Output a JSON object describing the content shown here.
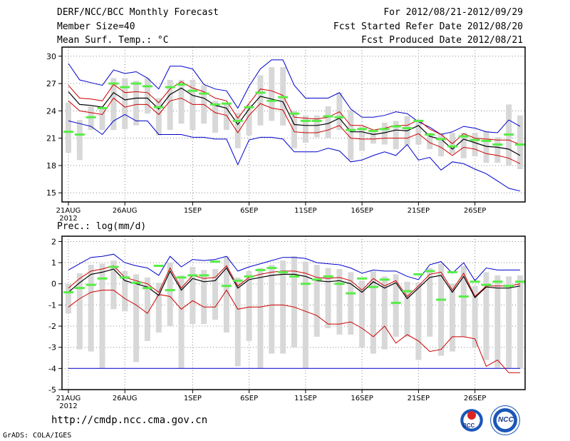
{
  "header": {
    "title": "DERF/NCC/BCC Monthly Forecast",
    "member_size": "Member Size=40",
    "variable": "Mean Surf. Temp.: °C",
    "period": "For 2012/08/21-2012/09/29",
    "start_date": "Fcst Started Refer Date 2012/08/20",
    "produced": "Fcst Produced Date 2012/08/21"
  },
  "prec_label": "Prec.: log(mm/d)",
  "footer": {
    "url": "http://cmdp.ncc.cma.gov.cn",
    "grads": "GrADS: COLA/IGES",
    "logo_bcc": "BCC",
    "logo_ncc": "NCC"
  },
  "colors": {
    "envelope": "#0000cc",
    "spread": "#cc0000",
    "mean": "#000000",
    "obs": "#55ee44",
    "box": "#d8d8d8"
  },
  "chart_data": [
    {
      "type": "box",
      "title": "Mean Surf. Temp.: °C",
      "ylim": [
        14,
        31
      ],
      "yticks": [
        15,
        18,
        21,
        24,
        27,
        30
      ],
      "year_label": "2012",
      "xticks": [
        {
          "day": 1,
          "label": "21AUG"
        },
        {
          "day": 6,
          "label": "26AUG"
        },
        {
          "day": 12,
          "label": "1SEP"
        },
        {
          "day": 17,
          "label": "6SEP"
        },
        {
          "day": 22,
          "label": "11SEP"
        },
        {
          "day": 27,
          "label": "16SEP"
        },
        {
          "day": 32,
          "label": "21SEP"
        },
        {
          "day": 37,
          "label": "26SEP"
        }
      ],
      "series": [
        {
          "name": "ensemble max",
          "values": [
            29.2,
            27.4,
            27.1,
            26.8,
            28.5,
            28.1,
            28.3,
            27.6,
            26.4,
            28.9,
            28.9,
            28.6,
            26.9,
            26.4,
            26.2,
            24.3,
            26.7,
            28.6,
            29.6,
            29.6,
            26.8,
            25.4,
            25.4,
            25.4,
            26.0,
            24.2,
            23.3,
            23.3,
            23.5,
            23.9,
            23.7,
            22.8,
            22.2,
            21.4,
            21.7,
            22.3,
            22.1,
            21.7,
            21.6,
            23.0,
            22.3
          ]
        },
        {
          "name": "mean + 1 sd",
          "values": [
            26.8,
            25.4,
            25.3,
            25.1,
            26.9,
            26.0,
            26.1,
            26.0,
            24.9,
            26.4,
            27.2,
            26.5,
            26.1,
            25.4,
            25.1,
            23.2,
            24.8,
            26.4,
            26.2,
            25.7,
            23.3,
            23.2,
            23.1,
            23.3,
            23.9,
            22.4,
            22.4,
            21.9,
            22.1,
            22.4,
            22.4,
            23.0,
            22.0,
            21.4,
            20.4,
            21.5,
            21.0,
            20.9,
            20.8,
            20.8,
            20.3
          ]
        },
        {
          "name": "ensemble mean",
          "values": [
            26.1,
            24.7,
            24.6,
            24.4,
            26.0,
            25.2,
            25.4,
            25.4,
            24.2,
            25.8,
            26.5,
            25.7,
            25.4,
            24.6,
            24.3,
            22.5,
            24.2,
            25.6,
            25.3,
            25.0,
            22.5,
            22.4,
            22.4,
            22.6,
            23.2,
            21.7,
            21.7,
            21.4,
            21.6,
            21.9,
            21.8,
            22.4,
            21.2,
            20.9,
            19.8,
            20.9,
            20.5,
            20.1,
            20.0,
            19.8,
            19.1
          ]
        },
        {
          "name": "mean - 1 sd",
          "values": [
            25.1,
            24.0,
            23.8,
            23.6,
            25.4,
            24.4,
            24.7,
            24.7,
            23.6,
            25.1,
            25.4,
            24.7,
            24.7,
            23.8,
            23.5,
            21.6,
            23.5,
            24.8,
            24.3,
            24.1,
            21.7,
            21.6,
            21.6,
            21.9,
            22.4,
            21.0,
            20.9,
            20.9,
            21.0,
            21.0,
            21.0,
            21.5,
            20.5,
            20.0,
            19.1,
            20.0,
            19.8,
            19.3,
            19.1,
            18.8,
            18.2
          ]
        },
        {
          "name": "ensemble min",
          "values": [
            22.9,
            22.6,
            22.3,
            21.4,
            22.9,
            23.6,
            22.9,
            22.9,
            21.4,
            21.4,
            21.4,
            21.1,
            21.1,
            20.9,
            20.9,
            18.1,
            20.8,
            21.1,
            21.1,
            20.9,
            19.5,
            19.5,
            19.5,
            19.9,
            19.6,
            18.4,
            18.6,
            19.1,
            19.5,
            19.1,
            20.3,
            18.6,
            18.9,
            17.5,
            18.4,
            18.2,
            17.6,
            17.1,
            16.3,
            15.5,
            15.2
          ]
        },
        {
          "name": "box top",
          "values": [
            24.9,
            23.0,
            24.5,
            24.4,
            27.6,
            27.6,
            27.3,
            27.6,
            25.4,
            27.4,
            27.4,
            27.4,
            26.8,
            25.1,
            24.8,
            23.8,
            24.7,
            27.9,
            28.8,
            28.8,
            24.0,
            23.5,
            23.5,
            24.5,
            26.0,
            24.1,
            22.3,
            21.9,
            22.7,
            22.9,
            23.4,
            23.0,
            21.6,
            21.6,
            21.6,
            21.6,
            21.6,
            21.8,
            21.1,
            24.7,
            23.5
          ]
        },
        {
          "name": "box bottom",
          "values": [
            19.4,
            18.6,
            21.9,
            21.9,
            21.9,
            22.0,
            22.4,
            23.7,
            21.3,
            21.9,
            22.6,
            21.9,
            22.6,
            21.6,
            21.9,
            19.9,
            21.3,
            22.4,
            22.9,
            22.4,
            19.9,
            20.5,
            21.1,
            21.0,
            21.9,
            18.6,
            19.6,
            20.4,
            20.3,
            19.8,
            20.2,
            20.3,
            19.8,
            19.0,
            19.3,
            18.8,
            19.0,
            18.3,
            18.3,
            18.0,
            17.6
          ]
        },
        {
          "name": "observed",
          "values": [
            21.7,
            21.4,
            23.3,
            24.3,
            27.0,
            26.6,
            27.0,
            26.7,
            24.4,
            26.6,
            26.9,
            26.2,
            25.9,
            24.7,
            24.8,
            22.9,
            24.4,
            26.0,
            25.1,
            25.5,
            23.7,
            22.9,
            22.9,
            23.4,
            23.3,
            21.9,
            22.0,
            21.8,
            22.0,
            22.3,
            22.1,
            22.9,
            21.4,
            20.9,
            20.1,
            21.2,
            20.8,
            20.7,
            20.3,
            21.4,
            20.3
          ]
        }
      ]
    },
    {
      "type": "box",
      "title": "Prec.: log(mm/d)",
      "ylim": [
        -5,
        2.25
      ],
      "yticks": [
        -5,
        -4,
        -3,
        -2,
        -1,
        0,
        1,
        2
      ],
      "year_label": "2012",
      "xticks": [
        {
          "day": 1,
          "label": "21AUG"
        },
        {
          "day": 6,
          "label": "26AUG"
        },
        {
          "day": 12,
          "label": "1SEP"
        },
        {
          "day": 17,
          "label": "6SEP"
        },
        {
          "day": 22,
          "label": "11SEP"
        },
        {
          "day": 27,
          "label": "16SEP"
        },
        {
          "day": 32,
          "label": "21SEP"
        },
        {
          "day": 37,
          "label": "26SEP"
        }
      ],
      "series": [
        {
          "name": "ensemble max",
          "values": [
            0.65,
            0.95,
            1.25,
            1.3,
            1.4,
            1.0,
            0.85,
            0.75,
            0.4,
            1.3,
            0.8,
            1.15,
            1.1,
            1.15,
            1.3,
            0.6,
            0.8,
            0.95,
            1.1,
            1.25,
            1.25,
            1.2,
            1.0,
            0.95,
            0.9,
            0.75,
            0.5,
            0.65,
            0.6,
            0.6,
            0.35,
            0.2,
            0.9,
            1.05,
            0.5,
            1.0,
            0.15,
            0.75,
            0.65,
            0.65,
            0.65
          ]
        },
        {
          "name": "mean + 1 sd",
          "values": [
            -0.2,
            0.25,
            0.6,
            0.7,
            0.85,
            0.3,
            0.15,
            0.0,
            -0.4,
            0.75,
            -0.2,
            0.4,
            0.25,
            0.3,
            0.85,
            -0.1,
            0.3,
            0.45,
            0.55,
            0.6,
            0.6,
            0.5,
            0.3,
            0.25,
            0.3,
            0.15,
            -0.3,
            0.25,
            -0.1,
            0.15,
            -0.6,
            -0.1,
            0.45,
            0.55,
            -0.3,
            0.5,
            -0.6,
            -0.1,
            -0.1,
            -0.1,
            0.0
          ]
        },
        {
          "name": "ensemble mean",
          "values": [
            -0.4,
            0.05,
            0.45,
            0.55,
            0.7,
            0.15,
            0.0,
            -0.15,
            -0.55,
            0.6,
            -0.3,
            0.25,
            0.1,
            0.15,
            0.75,
            -0.2,
            0.2,
            0.3,
            0.4,
            0.45,
            0.45,
            0.35,
            0.15,
            0.1,
            0.15,
            0.0,
            -0.4,
            0.1,
            -0.2,
            0.05,
            -0.7,
            -0.2,
            0.3,
            0.4,
            -0.4,
            0.35,
            -0.65,
            -0.15,
            -0.2,
            -0.2,
            -0.1
          ]
        },
        {
          "name": "mean - 1 sd",
          "values": [
            -1.1,
            -0.7,
            -0.4,
            -0.3,
            -0.3,
            -0.7,
            -1.0,
            -1.4,
            -0.5,
            -0.6,
            -1.2,
            -0.8,
            -1.1,
            -1.1,
            -0.3,
            -1.2,
            -1.1,
            -1.1,
            -1.0,
            -1.0,
            -1.1,
            -1.3,
            -1.5,
            -1.9,
            -1.9,
            -1.8,
            -2.1,
            -2.5,
            -2.0,
            -2.8,
            -2.4,
            -2.7,
            -3.2,
            -3.1,
            -2.5,
            -2.5,
            -2.6,
            -3.9,
            -3.6,
            -4.2,
            -4.2
          ]
        },
        {
          "name": "ensemble min",
          "values": [
            -4.0,
            -4.0,
            -4.0,
            -4.0,
            -4.0,
            -4.0,
            -4.0,
            -4.0,
            -4.0,
            -4.0,
            -4.0,
            -4.0,
            -4.0,
            -4.0,
            -4.0,
            -4.0,
            -4.0,
            -4.0,
            -4.0,
            -4.0,
            -4.0,
            -4.0,
            -4.0,
            -4.0,
            -4.0,
            -4.0,
            -4.0,
            -4.0,
            -4.0,
            -4.0,
            -4.0,
            -4.0,
            -4.0,
            -4.0,
            -4.0,
            -4.0,
            -4.0,
            -4.0,
            -4.0,
            -4.0,
            -4.0
          ]
        },
        {
          "name": "box top",
          "values": [
            0.0,
            0.5,
            0.9,
            0.95,
            1.1,
            0.6,
            0.45,
            0.3,
            0.05,
            1.0,
            0.4,
            0.8,
            0.65,
            0.7,
            1.3,
            0.3,
            0.6,
            0.75,
            0.9,
            1.1,
            1.3,
            1.05,
            0.9,
            0.75,
            0.7,
            0.55,
            0.15,
            0.6,
            0.35,
            0.45,
            0.1,
            0.05,
            0.75,
            0.95,
            0.0,
            0.85,
            -0.1,
            0.55,
            0.4,
            0.35,
            0.4
          ]
        },
        {
          "name": "box bottom",
          "values": [
            -1.4,
            -3.1,
            -3.2,
            -4.0,
            -1.2,
            -1.3,
            -3.7,
            -2.7,
            -2.3,
            -2.0,
            -4.0,
            -1.9,
            -1.9,
            -1.7,
            -2.3,
            -3.9,
            -2.7,
            -4.0,
            -3.3,
            -3.3,
            -3.0,
            -4.0,
            -2.5,
            -2.1,
            -2.4,
            -2.4,
            -3.0,
            -3.3,
            -3.1,
            -2.5,
            -2.5,
            -3.6,
            -2.5,
            -3.4,
            -3.2,
            -2.5,
            -3.0,
            -3.6,
            -4.0,
            -4.0,
            -4.0
          ]
        },
        {
          "name": "observed",
          "values": [
            -0.4,
            -0.2,
            -0.05,
            0.25,
            0.8,
            0.3,
            0.05,
            -0.2,
            0.85,
            -0.3,
            0.3,
            0.4,
            0.4,
            1.05,
            -0.1,
            0.15,
            0.35,
            0.65,
            0.75,
            0.55,
            0.35,
            0.0,
            0.2,
            0.35,
            0.0,
            -0.45,
            0.25,
            -0.15,
            0.2,
            -0.9,
            -0.35,
            0.45,
            0.6,
            -0.75,
            0.55,
            -0.6,
            0.1,
            -0.05,
            0.1,
            -0.1,
            0.1
          ]
        }
      ]
    }
  ]
}
